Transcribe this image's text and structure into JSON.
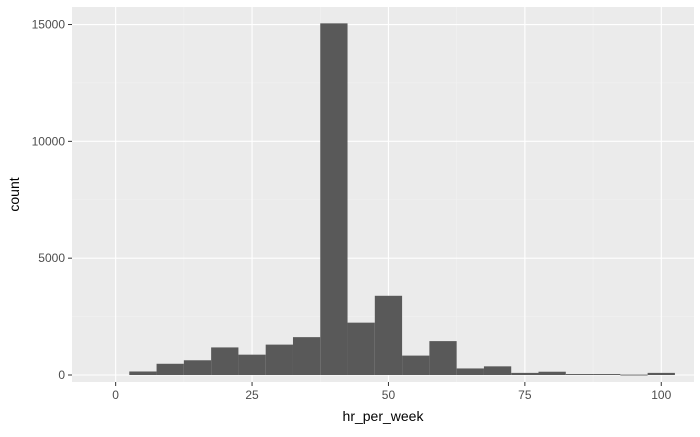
{
  "chart_data": {
    "type": "bar",
    "chart_style": "histogram",
    "title": "",
    "xlabel": "hr_per_week",
    "ylabel": "count",
    "xlim": [
      -8,
      106
    ],
    "ylim": [
      -300,
      15750
    ],
    "x_ticks": [
      0,
      25,
      50,
      75,
      100
    ],
    "y_ticks": [
      0,
      5000,
      10000,
      15000
    ],
    "grid": true,
    "bin_width": 5,
    "series": [
      {
        "bins": [
          {
            "x0": 2.5,
            "x1": 7.5,
            "count": 150
          },
          {
            "x0": 7.5,
            "x1": 12.5,
            "count": 480
          },
          {
            "x0": 12.5,
            "x1": 17.5,
            "count": 630
          },
          {
            "x0": 17.5,
            "x1": 22.5,
            "count": 1180
          },
          {
            "x0": 22.5,
            "x1": 27.5,
            "count": 870
          },
          {
            "x0": 27.5,
            "x1": 32.5,
            "count": 1300
          },
          {
            "x0": 32.5,
            "x1": 37.5,
            "count": 1620
          },
          {
            "x0": 37.5,
            "x1": 42.5,
            "count": 15050
          },
          {
            "x0": 42.5,
            "x1": 47.5,
            "count": 2240
          },
          {
            "x0": 47.5,
            "x1": 52.5,
            "count": 3390
          },
          {
            "x0": 52.5,
            "x1": 57.5,
            "count": 830
          },
          {
            "x0": 57.5,
            "x1": 62.5,
            "count": 1450
          },
          {
            "x0": 62.5,
            "x1": 67.5,
            "count": 280
          },
          {
            "x0": 67.5,
            "x1": 72.5,
            "count": 370
          },
          {
            "x0": 72.5,
            "x1": 77.5,
            "count": 90
          },
          {
            "x0": 77.5,
            "x1": 82.5,
            "count": 140
          },
          {
            "x0": 82.5,
            "x1": 87.5,
            "count": 40
          },
          {
            "x0": 87.5,
            "x1": 92.5,
            "count": 40
          },
          {
            "x0": 92.5,
            "x1": 97.5,
            "count": 15
          },
          {
            "x0": 97.5,
            "x1": 102.5,
            "count": 90
          }
        ]
      }
    ]
  },
  "colors": {
    "panel_background": "#ebebeb",
    "grid_major": "#ffffff",
    "grid_minor": "#f2f2f2",
    "bar_fill": "#595959",
    "axis_text": "#4d4d4d",
    "axis_title": "#000000",
    "tick_mark": "#333333"
  }
}
